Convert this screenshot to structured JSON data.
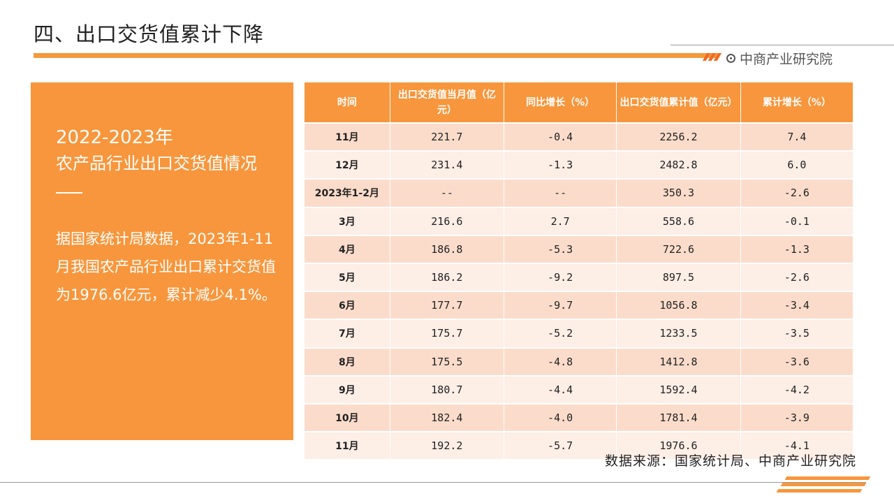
{
  "page": {
    "title": "四、出口交货值累计下降",
    "brand": "中商产业研究院",
    "source": "数据来源：国家统计局、中商产业研究院"
  },
  "left_panel": {
    "year": "2022-2023年",
    "subtitle": "农产品行业出口交货值情况",
    "body": "据国家统计局数据，2023年1-11月我国农产品行业出口累计交货值为1976.6亿元，累计减少4.1%。"
  },
  "table": {
    "headers": [
      "时间",
      "出口交货值当月值（亿元）",
      "同比增长（%）",
      "出口交货值累计值（亿元）",
      "累计增长（%）"
    ],
    "rows": [
      [
        "11月",
        "221.7",
        "-0.4",
        "2256.2",
        "7.4"
      ],
      [
        "12月",
        "231.4",
        "-1.3",
        "2482.8",
        "6.0"
      ],
      [
        "2023年1-2月",
        "--",
        "--",
        "350.3",
        "-2.6"
      ],
      [
        "3月",
        "216.6",
        "2.7",
        "558.6",
        "-0.1"
      ],
      [
        "4月",
        "186.8",
        "-5.3",
        "722.6",
        "-1.3"
      ],
      [
        "5月",
        "186.2",
        "-9.2",
        "897.5",
        "-2.6"
      ],
      [
        "6月",
        "177.7",
        "-9.7",
        "1056.8",
        "-3.4"
      ],
      [
        "7月",
        "175.7",
        "-5.2",
        "1233.5",
        "-3.5"
      ],
      [
        "8月",
        "175.5",
        "-4.8",
        "1412.8",
        "-3.6"
      ],
      [
        "9月",
        "180.7",
        "-4.4",
        "1592.4",
        "-4.2"
      ],
      [
        "10月",
        "182.4",
        "-4.0",
        "1781.4",
        "-3.9"
      ],
      [
        "11月",
        "192.2",
        "-5.7",
        "1976.6",
        "-4.1"
      ]
    ]
  },
  "colors": {
    "accent": "#f7963c",
    "row_odd": "#fbdccb",
    "row_even": "#fdeee6"
  }
}
